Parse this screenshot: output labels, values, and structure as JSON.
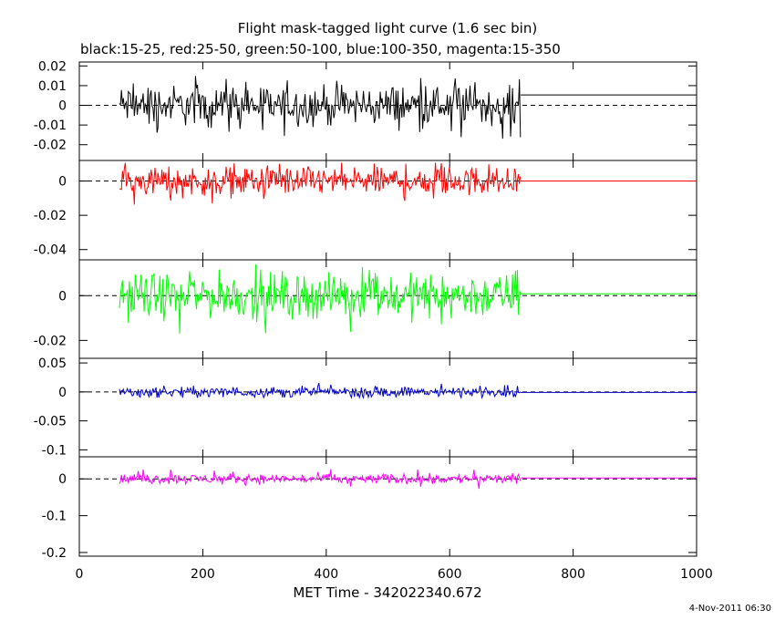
{
  "chart_data": {
    "type": "line",
    "title": "Flight mask-tagged light curve (1.6 sec bin)",
    "subtitle": "black:15-25, red:25-50, green:50-100, blue:100-350, magenta:15-350",
    "xlabel": "MET Time - 342022340.672",
    "xlim": [
      0,
      1000
    ],
    "x_ticks": [
      0,
      200,
      400,
      600,
      800,
      1000
    ],
    "x_tick_labels": [
      "0",
      "200",
      "400",
      "600",
      "800",
      "1000"
    ],
    "data_range": [
      65,
      715
    ],
    "bin_seconds": 1.6,
    "panels": [
      {
        "series": "15-25",
        "color": "#000000",
        "ylim": [
          -0.028,
          0.022
        ],
        "y_ticks": [
          -0.02,
          -0.01,
          0,
          0.01,
          0.02
        ],
        "y_tick_labels": [
          "-0.02",
          "-0.01",
          "0",
          "0.01",
          "0.02"
        ],
        "noise_amplitude": 0.005,
        "spike_max": 0.015,
        "spike_min": -0.017,
        "tail_level": 0.0053
      },
      {
        "series": "25-50",
        "color": "#ff0000",
        "ylim": [
          -0.046,
          0.012
        ],
        "y_ticks": [
          -0.04,
          -0.02,
          0
        ],
        "y_tick_labels": [
          "-0.04",
          "-0.02",
          "0"
        ],
        "noise_amplitude": 0.0042,
        "spike_max": 0.013,
        "spike_min": -0.014,
        "tail_level": 0.0
      },
      {
        "series": "50-100",
        "color": "#00ff00",
        "ylim": [
          -0.028,
          0.016
        ],
        "y_ticks": [
          -0.02,
          0
        ],
        "y_tick_labels": [
          "-0.02",
          "0"
        ],
        "noise_amplitude": 0.0048,
        "spike_max": 0.014,
        "spike_min": -0.017,
        "tail_level": 0.0008
      },
      {
        "series": "100-350",
        "color": "#0000cc",
        "ylim": [
          -0.112,
          0.058
        ],
        "y_ticks": [
          -0.1,
          -0.05,
          0,
          0.05
        ],
        "y_tick_labels": [
          "-0.1",
          "-0.05",
          "0",
          "0.05"
        ],
        "noise_amplitude": 0.0045,
        "spike_max": 0.016,
        "spike_min": -0.01,
        "tail_level": -0.0008
      },
      {
        "series": "15-350",
        "color": "#ff00ff",
        "ylim": [
          -0.21,
          0.06
        ],
        "y_ticks": [
          -0.2,
          -0.1,
          0
        ],
        "y_tick_labels": [
          "-0.2",
          "-0.1",
          "0"
        ],
        "noise_amplitude": 0.0065,
        "spike_max": 0.027,
        "spike_min": -0.028,
        "tail_level": 0.0025
      }
    ],
    "grid": false,
    "legend": "none"
  },
  "footer": {
    "date_stamp": "4-Nov-2011 06:30"
  }
}
